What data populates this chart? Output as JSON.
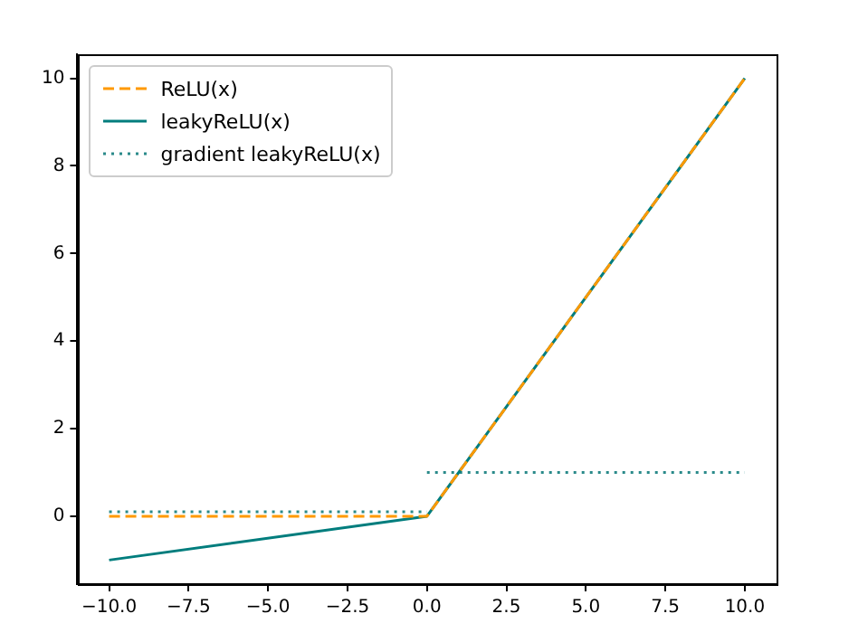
{
  "chart_data": {
    "type": "line",
    "legend": "top left",
    "grid": false,
    "marker": "none",
    "xlim": [
      -11,
      11
    ],
    "ylim": [
      -1.55,
      10.55
    ],
    "xticks": [
      {
        "value": -10,
        "label": "−10.0"
      },
      {
        "value": -7.5,
        "label": "−7.5"
      },
      {
        "value": -5,
        "label": "−5.0"
      },
      {
        "value": -2.5,
        "label": "−2.5"
      },
      {
        "value": 0,
        "label": "0.0"
      },
      {
        "value": 2.5,
        "label": "2.5"
      },
      {
        "value": 5,
        "label": "5.0"
      },
      {
        "value": 7.5,
        "label": "7.5"
      },
      {
        "value": 10,
        "label": "10.0"
      }
    ],
    "yticks": [
      0,
      2,
      4,
      6,
      8,
      10
    ],
    "series": [
      {
        "name": "ReLU(x)",
        "color": "#ff9900",
        "line_style": "dashed",
        "x": [
          -10,
          0,
          10
        ],
        "values": [
          0,
          0,
          10
        ]
      },
      {
        "name": "leakyReLU(x)",
        "color": "#007d7d",
        "line_style": "solid",
        "x": [
          -10,
          0,
          10
        ],
        "values": [
          -1,
          0,
          10
        ]
      },
      {
        "name": "gradient leakyReLU(x)",
        "color": "#2a8a8a",
        "line_style": "dotted",
        "x": [
          -10,
          0,
          null,
          0,
          10
        ],
        "values": [
          0.1,
          0.1,
          null,
          1,
          1
        ]
      }
    ]
  }
}
